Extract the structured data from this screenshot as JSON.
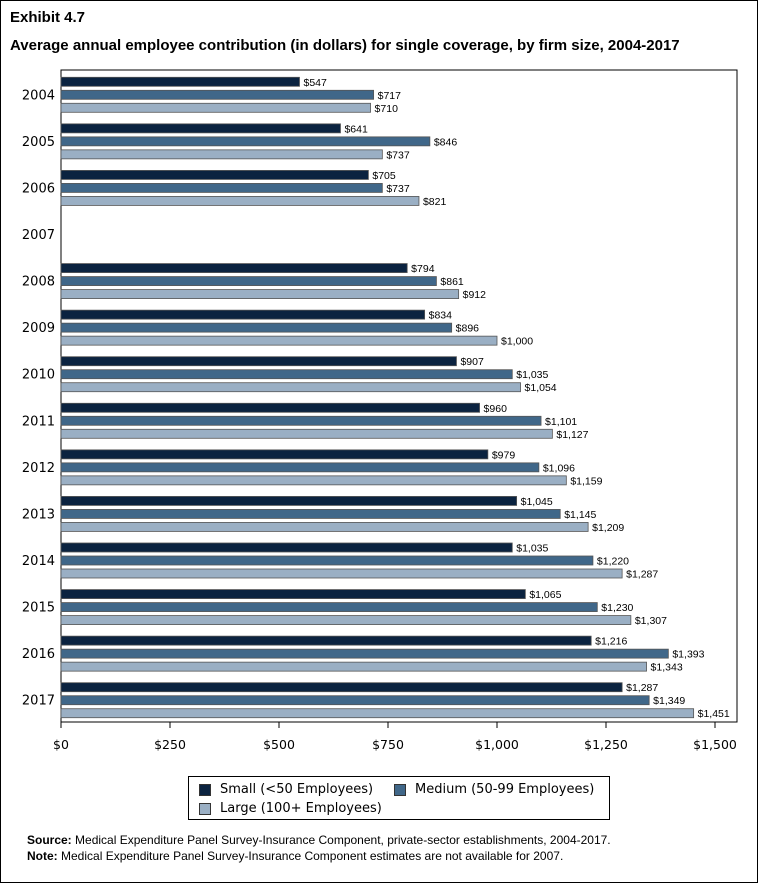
{
  "chart_data": {
    "type": "bar",
    "orientation": "horizontal",
    "exhibit": "Exhibit 4.7",
    "title": "Average annual employee contribution (in dollars) for single coverage, by firm size, 2004-2017",
    "categories": [
      "2004",
      "2005",
      "2006",
      "2007",
      "2008",
      "2009",
      "2010",
      "2011",
      "2012",
      "2013",
      "2014",
      "2015",
      "2016",
      "2017"
    ],
    "series": [
      {
        "name": "Small (<50 Employees)",
        "color": "#0b2340",
        "values": [
          547,
          641,
          705,
          null,
          794,
          834,
          907,
          960,
          979,
          1045,
          1035,
          1065,
          1216,
          1287
        ],
        "labels": [
          "$547",
          "$641",
          "$705",
          "",
          "$794",
          "$834",
          "$907",
          "$960",
          "$979",
          "$1,045",
          "$1,035",
          "$1,065",
          "$1,216",
          "$1,287"
        ]
      },
      {
        "name": "Medium (50-99 Employees)",
        "color": "#406789",
        "values": [
          717,
          846,
          737,
          null,
          861,
          896,
          1035,
          1101,
          1096,
          1145,
          1220,
          1230,
          1393,
          1349
        ],
        "labels": [
          "$717",
          "$846",
          "$737",
          "",
          "$861",
          "$896",
          "$1,035",
          "$1,101",
          "$1,096",
          "$1,145",
          "$1,220",
          "$1,230",
          "$1,393",
          "$1,349"
        ]
      },
      {
        "name": "Large (100+ Employees)",
        "color": "#9aafc4",
        "values": [
          710,
          737,
          821,
          null,
          912,
          1000,
          1054,
          1127,
          1159,
          1209,
          1287,
          1307,
          1343,
          1451
        ],
        "labels": [
          "$710",
          "$737",
          "$821",
          "",
          "$912",
          "$1,000",
          "$1,054",
          "$1,127",
          "$1,159",
          "$1,209",
          "$1,287",
          "$1,307",
          "$1,343",
          "$1,451"
        ]
      }
    ],
    "xlim": [
      0,
      1500
    ],
    "xticks": [
      0,
      250,
      500,
      750,
      1000,
      1250,
      1500
    ],
    "xtick_labels": [
      "$0",
      "$250",
      "$500",
      "$750",
      "$1,000",
      "$1,250",
      "$1,500"
    ],
    "grid": false,
    "legend_placement": "bottom"
  },
  "footnotes": {
    "source_label": "Source:",
    "source_text": " Medical Expenditure Panel Survey-Insurance Component, private-sector establishments, 2004-2017.",
    "note_label": "Note:",
    "note_text": " Medical Expenditure Panel Survey-Insurance Component estimates are not available for 2007."
  }
}
